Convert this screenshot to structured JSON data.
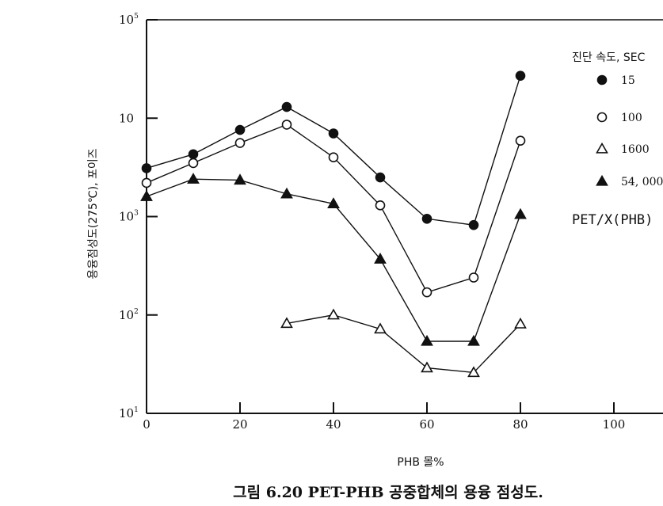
{
  "chart_data": {
    "type": "line",
    "caption": "그림 6.20 PET-PHB 공중합체의 용융 점성도.",
    "xlabel": "PHB 몰%",
    "ylabel": "용융점성도(275℃), 포이즈",
    "xlim": [
      0,
      110
    ],
    "ylim": [
      10,
      100000
    ],
    "yscale": "log",
    "x_ticks": [
      "0",
      "20",
      "40",
      "60",
      "80",
      "100"
    ],
    "y_ticks": [
      {
        "base": "10",
        "exp": "1"
      },
      {
        "base": "10",
        "exp": "2"
      },
      {
        "base": "10",
        "exp": "3"
      },
      {
        "base": "10",
        "exp": ""
      },
      {
        "base": "10",
        "exp": "5"
      }
    ],
    "legend_title": "진단 속도, SEC",
    "blend_label": "PET/X(PHB)",
    "grid": false,
    "series": [
      {
        "name": "15",
        "marker": "filled-circle",
        "x": [
          0,
          10,
          20,
          30,
          40,
          50,
          60,
          70,
          80
        ],
        "y": [
          3100,
          4300,
          7600,
          13000,
          7000,
          2500,
          950,
          820,
          27000
        ]
      },
      {
        "name": "100",
        "marker": "open-circle",
        "x": [
          0,
          10,
          20,
          30,
          40,
          50,
          60,
          70,
          80
        ],
        "y": [
          2200,
          3500,
          5600,
          8600,
          4000,
          1300,
          170,
          240,
          5900
        ]
      },
      {
        "name": "1600",
        "marker": "open-triangle",
        "x": [
          30,
          40,
          50,
          60,
          70,
          80
        ],
        "y": [
          82,
          100,
          72,
          29,
          26,
          81
        ]
      },
      {
        "name": "54, 000",
        "marker": "filled-triangle",
        "x": [
          0,
          10,
          20,
          30,
          40,
          50,
          60,
          70,
          80
        ],
        "y": [
          1600,
          2400,
          2350,
          1700,
          1350,
          370,
          54,
          54,
          1050
        ]
      }
    ]
  }
}
